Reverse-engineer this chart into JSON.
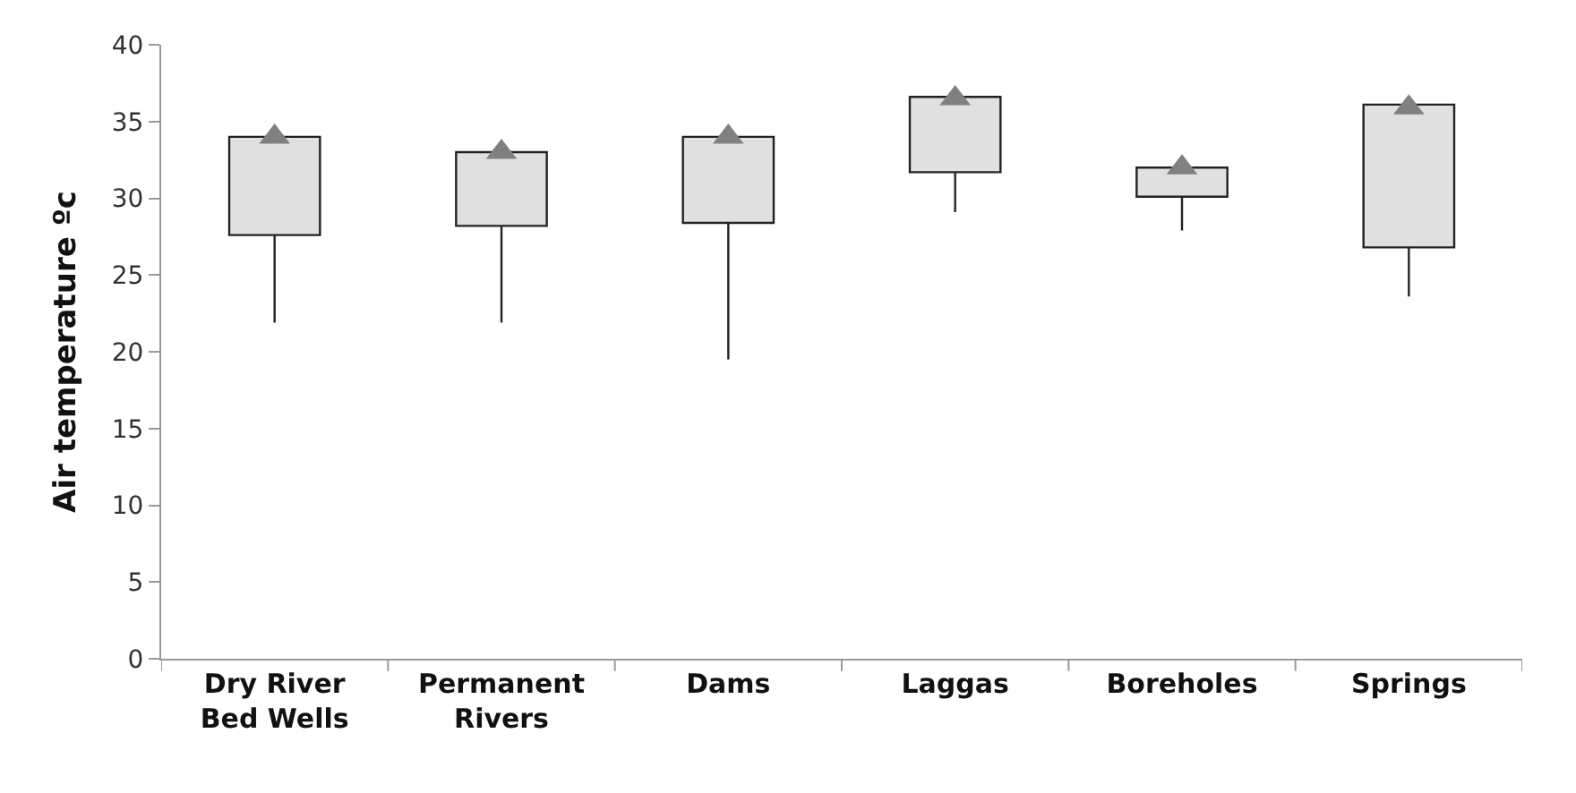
{
  "chart_data": {
    "type": "bar",
    "ylabel": "Air temperature ºc",
    "categories": [
      "Dry River Bed Wells",
      "Permanent Rivers",
      "Dams",
      "Laggas",
      "Boreholes",
      "Springs"
    ],
    "series": [
      {
        "color": "#e0e0e0",
        "base": [
          27.6,
          28.2,
          28.4,
          31.7,
          30.1,
          26.8
        ],
        "values": [
          6.4,
          4.8,
          5.6,
          4.9,
          1.9,
          9.3
        ],
        "errors": [
          [
            21.9,
            27.6
          ],
          [
            21.9,
            28.2
          ],
          [
            19.5,
            28.4
          ],
          [
            29.1,
            31.7
          ],
          [
            27.9,
            30.1
          ],
          [
            23.6,
            26.8
          ]
        ]
      },
      {
        "type": "scatter",
        "color": "#808080",
        "marker": "triangle",
        "values": [
          34.0,
          33.0,
          34.0,
          36.5,
          32.0,
          35.9
        ]
      }
    ],
    "ylim": [
      0,
      40
    ],
    "yticks": [
      0,
      5,
      10,
      15,
      20,
      25,
      30,
      35,
      40
    ]
  }
}
